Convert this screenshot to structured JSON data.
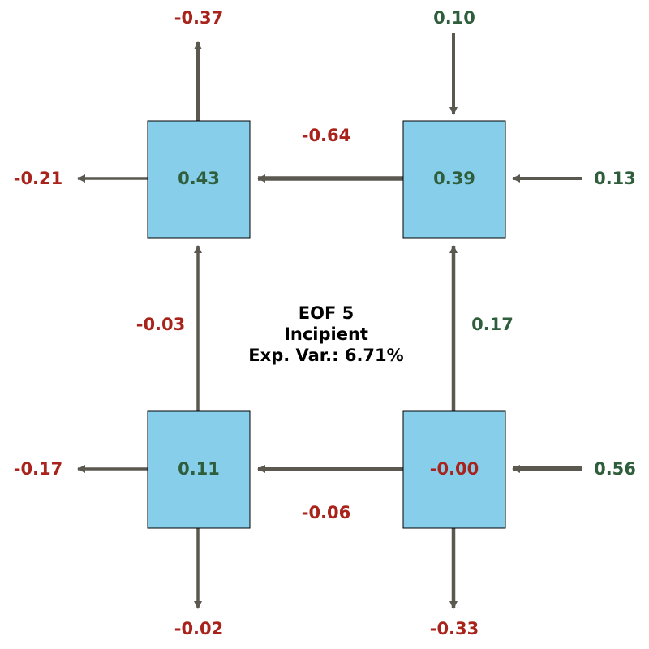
{
  "colors": {
    "box_fill": "#87ceeb",
    "box_stroke": "#000000",
    "arrow": "#5b5850",
    "positive": "#2f5e3c",
    "negative": "#a8231b"
  },
  "title": {
    "line1": "EOF 5",
    "line2": "Incipient",
    "line3": "Exp. Var.: 6.71%"
  },
  "boxes": {
    "top_left": {
      "value": "0.43",
      "sign": "positive"
    },
    "top_right": {
      "value": "0.39",
      "sign": "positive"
    },
    "bottom_left": {
      "value": "0.11",
      "sign": "positive"
    },
    "bottom_right": {
      "value": "-0.00",
      "sign": "negative"
    }
  },
  "flows": {
    "tl_out_top": {
      "value": "-0.37",
      "sign": "negative",
      "direction": "up"
    },
    "tl_out_left": {
      "value": "-0.21",
      "sign": "negative",
      "direction": "left"
    },
    "tr_in_top": {
      "value": "0.10",
      "sign": "positive",
      "direction": "down"
    },
    "tr_in_right": {
      "value": "0.13",
      "sign": "positive",
      "direction": "left"
    },
    "tr_to_tl": {
      "value": "-0.64",
      "sign": "negative",
      "direction": "left"
    },
    "bl_to_tl": {
      "value": "-0.03",
      "sign": "negative",
      "direction": "up"
    },
    "br_to_tr": {
      "value": "0.17",
      "sign": "positive",
      "direction": "up"
    },
    "br_to_bl": {
      "value": "-0.06",
      "sign": "negative",
      "direction": "left"
    },
    "bl_out_left": {
      "value": "-0.17",
      "sign": "negative",
      "direction": "left"
    },
    "br_in_right": {
      "value": "0.56",
      "sign": "positive",
      "direction": "left"
    },
    "bl_out_bottom": {
      "value": "-0.02",
      "sign": "negative",
      "direction": "down"
    },
    "br_out_bottom": {
      "value": "-0.33",
      "sign": "negative",
      "direction": "down"
    }
  }
}
